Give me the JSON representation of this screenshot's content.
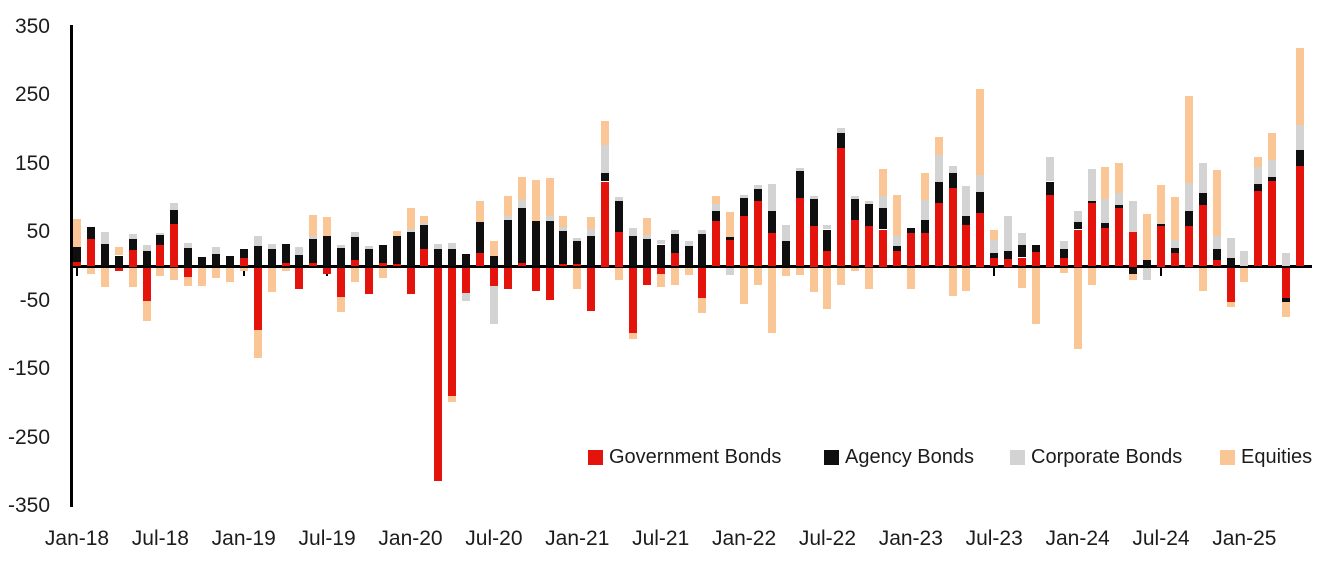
{
  "chart": {
    "y_axis": {
      "tick_labels": [
        350,
        250,
        150,
        50,
        -50,
        -150,
        -250,
        -350
      ],
      "min": -350,
      "max": 350
    },
    "x_axis": {
      "tick_labels": [
        "Jan-18",
        "Jul-18",
        "Jan-19",
        "Jul-19",
        "Jan-20",
        "Jul-20",
        "Jan-21",
        "Jul-21",
        "Jan-22",
        "Jul-22",
        "Jan-23",
        "Jul-23",
        "Jan-24",
        "Jul-24",
        "Jan-25"
      ]
    },
    "legend": {
      "items": [
        {
          "label": "Government Bonds",
          "color": "#e4130b"
        },
        {
          "label": "Agency Bonds",
          "color": "#0f0f0f"
        },
        {
          "label": "Corporate Bonds",
          "color": "#d3d3d3"
        },
        {
          "label": "Equities",
          "color": "#fac695"
        }
      ]
    }
  },
  "chart_data": {
    "type": "bar",
    "stacked": true,
    "title": "",
    "xlabel": "",
    "ylabel": "",
    "ylim": [
      -350,
      350
    ],
    "grid": false,
    "legend_position": "bottom-inside",
    "categories": [
      "Jan-18",
      "Feb-18",
      "Mar-18",
      "Apr-18",
      "May-18",
      "Jun-18",
      "Jul-18",
      "Aug-18",
      "Sep-18",
      "Oct-18",
      "Nov-18",
      "Dec-18",
      "Jan-19",
      "Feb-19",
      "Mar-19",
      "Apr-19",
      "May-19",
      "Jun-19",
      "Jul-19",
      "Aug-19",
      "Sep-19",
      "Oct-19",
      "Nov-19",
      "Dec-19",
      "Jan-20",
      "Feb-20",
      "Mar-20",
      "Apr-20",
      "May-20",
      "Jun-20",
      "Jul-20",
      "Aug-20",
      "Sep-20",
      "Oct-20",
      "Nov-20",
      "Dec-20",
      "Jan-21",
      "Feb-21",
      "Mar-21",
      "Apr-21",
      "May-21",
      "Jun-21",
      "Jul-21",
      "Aug-21",
      "Sep-21",
      "Oct-21",
      "Nov-21",
      "Dec-21",
      "Jan-22",
      "Feb-22",
      "Mar-22",
      "Apr-22",
      "May-22",
      "Jun-22",
      "Jul-22",
      "Aug-22",
      "Sep-22",
      "Oct-22",
      "Nov-22",
      "Dec-22",
      "Jan-23",
      "Feb-23",
      "Mar-23",
      "Apr-23",
      "May-23",
      "Jun-23",
      "Jul-23",
      "Aug-23",
      "Sep-23",
      "Oct-23",
      "Nov-23",
      "Dec-23",
      "Jan-24",
      "Feb-24",
      "Mar-24",
      "Apr-24",
      "May-24",
      "Jun-24",
      "Jul-24",
      "Aug-24",
      "Sep-24",
      "Oct-24",
      "Nov-24",
      "Dec-24",
      "Jan-25",
      "Feb-25",
      "Mar-25",
      "Apr-25",
      "May-25"
    ],
    "series": [
      {
        "name": "Government Bonds",
        "color": "#e4130b",
        "values": [
          6,
          40,
          0,
          -5,
          24,
          -48,
          32,
          62,
          -13,
          0,
          0,
          0,
          12,
          -90,
          0,
          5,
          -31,
          5,
          -8,
          -42,
          10,
          -38,
          5,
          3,
          -38,
          26,
          -310,
          -186,
          -36,
          20,
          -26,
          -31,
          5,
          -33,
          -46,
          3,
          3,
          -63,
          124,
          51,
          -94,
          -25,
          -8,
          20,
          0,
          -43,
          66,
          39,
          73,
          95,
          49,
          0,
          100,
          59,
          22,
          173,
          68,
          59,
          54,
          22,
          49,
          49,
          93,
          115,
          61,
          78,
          13,
          11,
          13,
          21,
          105,
          12,
          54,
          93,
          56,
          85,
          51,
          0,
          59,
          20,
          59,
          90,
          10,
          -50,
          0,
          110,
          125,
          -43,
          146
        ]
      },
      {
        "name": "Agency Bonds",
        "color": "#0f0f0f",
        "values": [
          23,
          18,
          33,
          16,
          16,
          23,
          14,
          20,
          27,
          14,
          18,
          15,
          14,
          30,
          25,
          28,
          17,
          35,
          45,
          27,
          33,
          25,
          27,
          42,
          50,
          35,
          25,
          25,
          18,
          45,
          15,
          68,
          80,
          66,
          66,
          49,
          34,
          45,
          12,
          44,
          44,
          40,
          32,
          27,
          30,
          47,
          15,
          4,
          27,
          18,
          32,
          37,
          39,
          39,
          32,
          22,
          30,
          32,
          32,
          8,
          7,
          19,
          30,
          22,
          12,
          30,
          7,
          11,
          18,
          11,
          19,
          13,
          11,
          3,
          7,
          5,
          -8,
          10,
          3,
          7,
          22,
          17,
          15,
          13,
          0,
          10,
          5,
          -7,
          24
        ]
      },
      {
        "name": "Corporate Bonds",
        "color": "#d3d3d3",
        "values": [
          0,
          0,
          17,
          0,
          8,
          9,
          3,
          10,
          7,
          0,
          10,
          0,
          0,
          15,
          8,
          0,
          12,
          5,
          0,
          4,
          7,
          5,
          0,
          0,
          5,
          2,
          8,
          10,
          -12,
          0,
          -56,
          5,
          12,
          0,
          7,
          5,
          5,
          10,
          41,
          7,
          12,
          6,
          6,
          7,
          7,
          7,
          10,
          -10,
          5,
          6,
          39,
          24,
          5,
          5,
          6,
          7,
          5,
          4,
          17,
          15,
          0,
          29,
          40,
          9,
          44,
          26,
          19,
          51,
          18,
          0,
          36,
          12,
          16,
          46,
          36,
          17,
          44,
          -17,
          2,
          12,
          41,
          44,
          19,
          29,
          22,
          25,
          25,
          20,
          36
        ]
      },
      {
        "name": "Equities",
        "color": "#fac695",
        "values": [
          40,
          -8,
          -27,
          13,
          -27,
          -29,
          -12,
          -18,
          -14,
          -26,
          -15,
          -20,
          -5,
          -42,
          -35,
          -4,
          0,
          30,
          27,
          -22,
          -21,
          0,
          -15,
          7,
          30,
          10,
          0,
          -10,
          0,
          30,
          22,
          30,
          33,
          60,
          56,
          17,
          -31,
          17,
          35,
          -17,
          -10,
          25,
          -20,
          -24,
          -10,
          -22,
          12,
          37,
          -53,
          -24,
          -94,
          -12,
          -10,
          -35,
          -60,
          -24,
          -5,
          -30,
          39,
          60,
          -31,
          39,
          26,
          -41,
          -33,
          125,
          14,
          0,
          -29,
          -82,
          0,
          -7,
          -118,
          -24,
          46,
          44,
          -10,
          66,
          55,
          63,
          126,
          -33,
          97,
          -7,
          -20,
          15,
          40,
          -22,
          112
        ]
      }
    ]
  }
}
